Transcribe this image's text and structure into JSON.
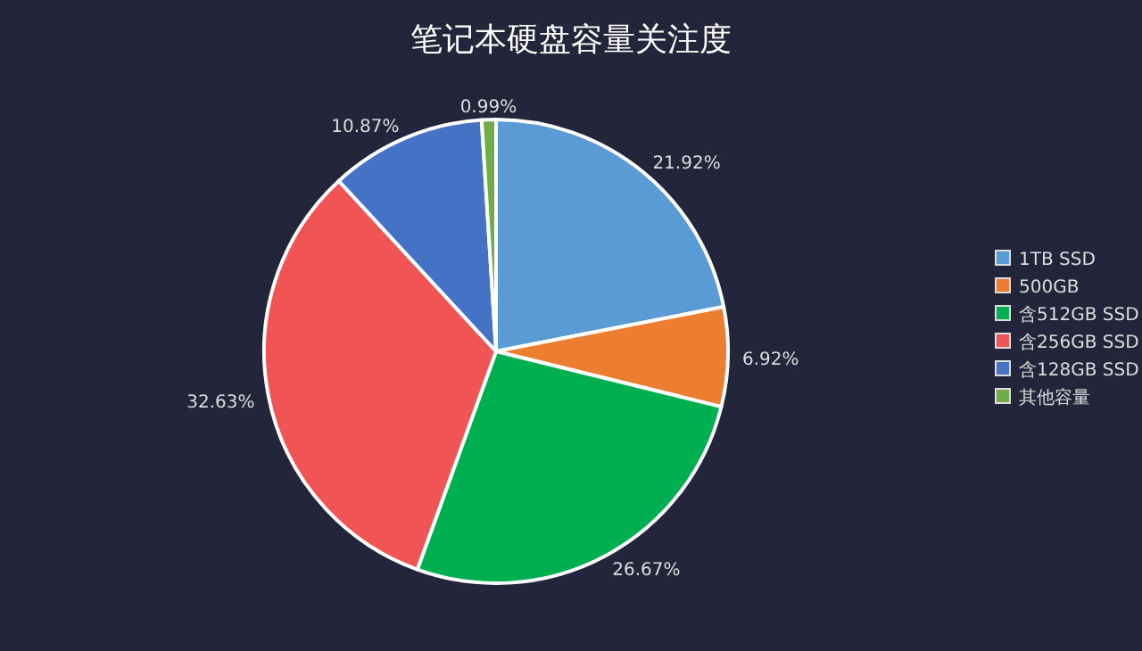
{
  "chart_data": {
    "type": "pie",
    "title": "笔记本硬盘容量关注度",
    "categories": [
      "1TB SSD",
      "500GB",
      "含512GB SSD",
      "含256GB SSD",
      "含128GB SSD",
      "其他容量"
    ],
    "values": [
      21.92,
      6.92,
      26.67,
      32.63,
      10.87,
      0.99
    ],
    "colors": [
      "#5b9bd5",
      "#ed7d31",
      "#00b050",
      "#f05454",
      "#4472c4",
      "#70ad47"
    ],
    "value_labels": [
      "21.92%",
      "6.92%",
      "26.67%",
      "32.63%",
      "10.87%",
      "0.99%"
    ],
    "legend": "right"
  }
}
